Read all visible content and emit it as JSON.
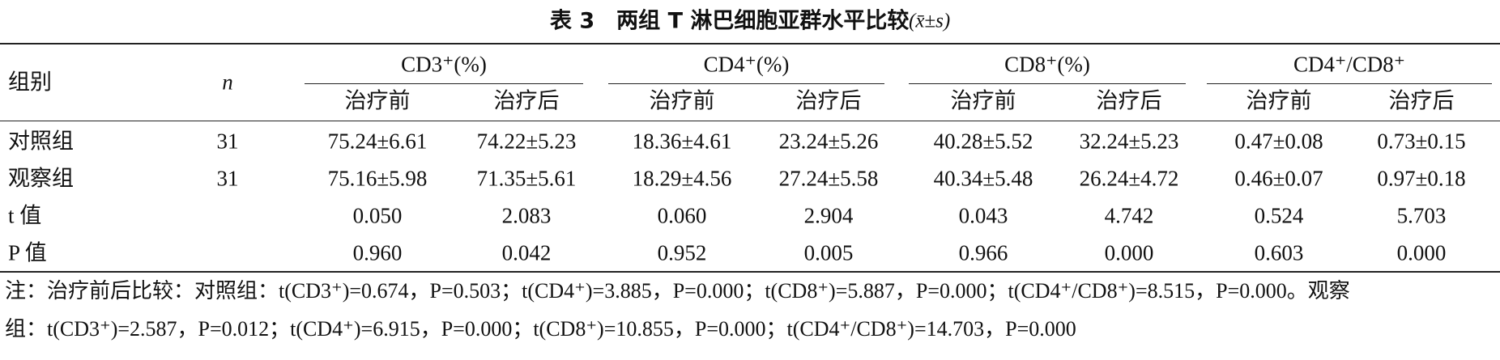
{
  "title": "表 3　两组 T 淋巴细胞亚群水平比较",
  "title_stat": "(x̄±s)",
  "header": {
    "group": "组别",
    "n": "n",
    "measures": [
      {
        "name": "CD3⁺(%)",
        "sub": [
          "治疗前",
          "治疗后"
        ]
      },
      {
        "name": "CD4⁺(%)",
        "sub": [
          "治疗前",
          "治疗后"
        ]
      },
      {
        "name": "CD8⁺(%)",
        "sub": [
          "治疗前",
          "治疗后"
        ]
      },
      {
        "name": "CD4⁺/CD8⁺",
        "sub": [
          "治疗前",
          "治疗后"
        ]
      }
    ]
  },
  "rows": [
    {
      "label": "对照组",
      "n": "31",
      "cells": [
        "75.24±6.61",
        "74.22±5.23",
        "18.36±4.61",
        "23.24±5.26",
        "40.28±5.52",
        "32.24±5.23",
        "0.47±0.08",
        "0.73±0.15"
      ]
    },
    {
      "label": "观察组",
      "n": "31",
      "cells": [
        "75.16±5.98",
        "71.35±5.61",
        "18.29±4.56",
        "27.24±5.58",
        "40.34±5.48",
        "26.24±4.72",
        "0.46±0.07",
        "0.97±0.18"
      ]
    },
    {
      "label": "t 值",
      "cells": [
        "0.050",
        "2.083",
        "0.060",
        "2.904",
        "0.043",
        "4.742",
        "0.524",
        "5.703"
      ]
    },
    {
      "label": "P 值",
      "cells": [
        "0.960",
        "0.042",
        "0.952",
        "0.005",
        "0.966",
        "0.000",
        "0.603",
        "0.000"
      ]
    }
  ],
  "note": [
    "注：治疗前后比较：对照组：t(CD3⁺)=0.674，P=0.503；t(CD4⁺)=3.885，P=0.000；t(CD8⁺)=5.887，P=0.000；t(CD4⁺/CD8⁺)=8.515，P=0.000。观察",
    "组：t(CD3⁺)=2.587，P=0.012；t(CD4⁺)=6.915，P=0.000；t(CD8⁺)=10.855，P=0.000；t(CD4⁺/CD8⁺)=14.703，P=0.000"
  ]
}
